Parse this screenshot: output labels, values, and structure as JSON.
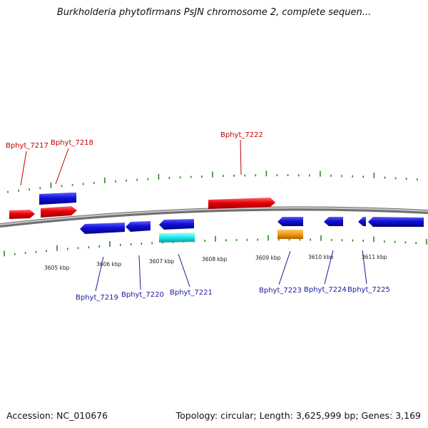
{
  "title": "Burkholderia phytofirmans PsJN chromosome 2, complete sequen...",
  "footer": {
    "accession": "Accession: NC_010676",
    "summary": "Topology: circular; Length: 3,625,999 bp; Genes: 3,169"
  },
  "colors": {
    "plus_strand": "#e8000b",
    "minus_strand": "#1010d8",
    "cyan_feature": "#19e8e8",
    "orange_feature": "#f49a12",
    "tick": "#2a8a1e",
    "backbone": "#8a8a8a",
    "label_top": "#c40000",
    "label_bottom": "#1a1aa0"
  },
  "ticks": [
    "3605 kbp",
    "3606 kbp",
    "3607 kbp",
    "3608 kbp",
    "3609 kbp",
    "3610 kbp",
    "3611 kbp"
  ],
  "genes_top": [
    "Bphyt_7217",
    "Bphyt_7218",
    "Bphyt_7222"
  ],
  "genes_bottom": [
    "Bphyt_7219",
    "Bphyt_7220",
    "Bphyt_7221",
    "Bphyt_7223",
    "Bphyt_7224",
    "Bphyt_7225"
  ]
}
